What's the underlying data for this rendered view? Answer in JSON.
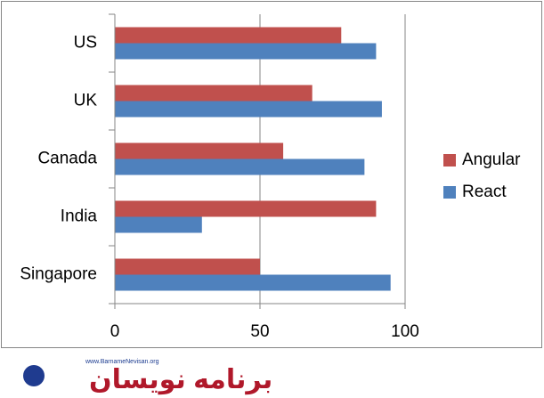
{
  "chart_data": {
    "type": "hbar",
    "categories": [
      "US",
      "UK",
      "Canada",
      "India",
      "Singapore"
    ],
    "series": [
      {
        "name": "Angular",
        "color": "#c0504d",
        "values": [
          78,
          68,
          58,
          90,
          50
        ]
      },
      {
        "name": "React",
        "color": "#4f81bd",
        "values": [
          90,
          92,
          86,
          30,
          95
        ]
      }
    ],
    "xlim": [
      0,
      100
    ],
    "xticks": [
      0,
      50,
      100
    ],
    "grid": true,
    "legend": "right"
  },
  "watermark": {
    "url": "www.BarnameNevisan.org",
    "logo": "برنامه نویسان"
  }
}
